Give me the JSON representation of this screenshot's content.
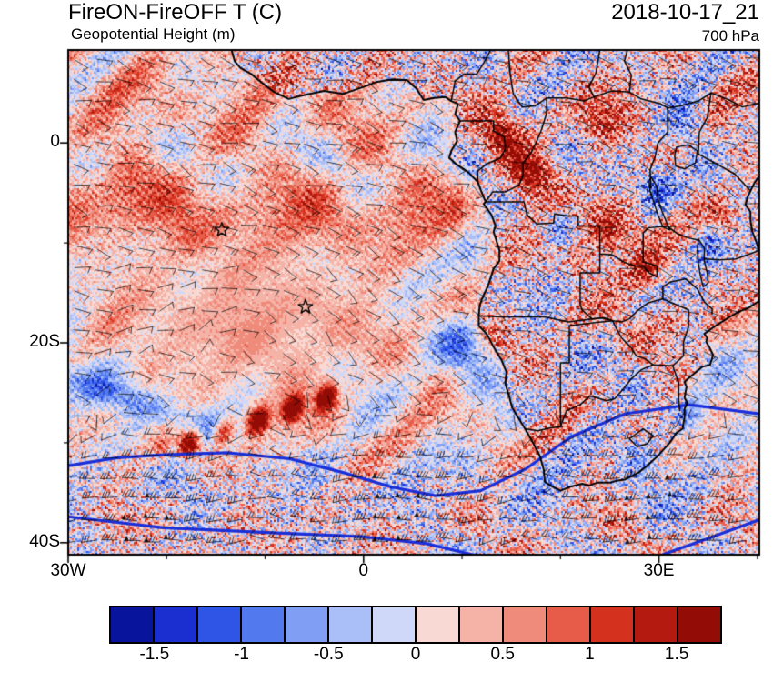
{
  "header": {
    "title": "FireON-FireOFF T (C)",
    "subtitle": "Geopotential Height (m)",
    "datetime": "2018-10-17_21",
    "level": "700 hPa"
  },
  "axes": {
    "lat_major": [
      {
        "label": "0",
        "value": 0
      },
      {
        "label": "20S",
        "value": -20
      },
      {
        "label": "40S",
        "value": -40
      }
    ],
    "lat_minor": [
      -10,
      -30
    ],
    "lon_major": [
      {
        "label": "30W",
        "value": -30
      },
      {
        "label": "0",
        "value": 0
      },
      {
        "label": "30E",
        "value": 30
      }
    ],
    "lon_minor": [
      -20,
      -10,
      10,
      20,
      40
    ]
  },
  "colorbar": {
    "colors": [
      "#08149c",
      "#1b2fd0",
      "#2f55e7",
      "#5379ef",
      "#7f9ef4",
      "#aabff7",
      "#cfd8f8",
      "#f8d9d3",
      "#f5b3a8",
      "#ef8b7b",
      "#e75c48",
      "#d4321f",
      "#b51a10",
      "#930c06"
    ],
    "tick_labels": [
      "-1.5",
      "-1",
      "-0.5",
      "0",
      "0.5",
      "1",
      "1.5"
    ]
  },
  "chart_data": {
    "type": "heatmap",
    "title": "FireON-FireOFF T (C)",
    "overlay_field": "Geopotential Height (m)",
    "valid_time": "2018-10-17_21",
    "level": "700 hPa",
    "units": "C",
    "lon_range": [
      -30,
      40.2
    ],
    "lat_range": [
      -41.2,
      9.3
    ],
    "color_levels": [
      -1.75,
      -1.5,
      -1.25,
      -1.0,
      -0.75,
      -0.5,
      -0.25,
      0,
      0.25,
      0.5,
      0.75,
      1.0,
      1.25,
      1.5,
      1.75
    ],
    "colorbar_tick_labels": [
      "-1.5",
      "-1",
      "-0.5",
      "0",
      "0.5",
      "1",
      "1.5"
    ],
    "markers": [
      {
        "lon": -14.4,
        "lat": -8.7
      },
      {
        "lon": -5.9,
        "lat": -16.4
      }
    ],
    "height_contour_color": "#1a2fd8",
    "height_contours": [
      [
        [
          -30,
          -32.3
        ],
        [
          -25,
          -31.5
        ],
        [
          -20.3,
          -31.2
        ],
        [
          -13.9,
          -31.0
        ],
        [
          -7.5,
          -31.6
        ],
        [
          -2,
          -33.0
        ],
        [
          2.7,
          -34.4
        ],
        [
          7.3,
          -35.3
        ],
        [
          11.9,
          -34.8
        ],
        [
          16.5,
          -32.6
        ],
        [
          21.1,
          -29.4
        ],
        [
          26.6,
          -27.1
        ],
        [
          33.1,
          -26.2
        ],
        [
          40.2,
          -27.1
        ]
      ],
      [
        [
          -30,
          -37.4
        ],
        [
          -20.3,
          -38.5
        ],
        [
          -9.3,
          -39.0
        ],
        [
          -0.1,
          -39.4
        ],
        [
          6.4,
          -40.1
        ],
        [
          11.9,
          -41.4
        ]
      ],
      [
        [
          29.8,
          -41.4
        ],
        [
          34.9,
          -39.6
        ],
        [
          40.2,
          -37.7
        ]
      ]
    ]
  },
  "geo": {
    "coastline": [
      [
        -13.4,
        9.3
      ],
      [
        -13.1,
        8.2
      ],
      [
        -12.5,
        7.5
      ],
      [
        -11.4,
        6.9
      ],
      [
        -10.7,
        6.3
      ],
      [
        -9.1,
        5.1
      ],
      [
        -7.6,
        4.4
      ],
      [
        -6.0,
        4.8
      ],
      [
        -4.0,
        5.2
      ],
      [
        -2.1,
        4.9
      ],
      [
        0.0,
        5.6
      ],
      [
        1.3,
        6.1
      ],
      [
        2.5,
        6.3
      ],
      [
        4.4,
        6.3
      ],
      [
        5.4,
        5.4
      ],
      [
        6.1,
        4.3
      ],
      [
        7.2,
        4.5
      ],
      [
        8.3,
        4.6
      ],
      [
        8.9,
        4.2
      ],
      [
        9.6,
        3.9
      ],
      [
        9.3,
        2.9
      ],
      [
        9.8,
        2.2
      ],
      [
        9.3,
        1.1
      ],
      [
        9.5,
        0.2
      ],
      [
        8.9,
        -0.8
      ],
      [
        8.7,
        -1.5
      ],
      [
        9.4,
        -2.1
      ],
      [
        10.6,
        -2.9
      ],
      [
        11.6,
        -3.9
      ],
      [
        11.9,
        -4.7
      ],
      [
        12.4,
        -5.9
      ],
      [
        12.2,
        -6.1
      ],
      [
        13.0,
        -7.2
      ],
      [
        13.4,
        -8.3
      ],
      [
        13.2,
        -8.9
      ],
      [
        13.8,
        -10.7
      ],
      [
        13.8,
        -11.8
      ],
      [
        13.2,
        -12.6
      ],
      [
        12.9,
        -13.5
      ],
      [
        12.6,
        -14.4
      ],
      [
        12.2,
        -15.2
      ],
      [
        11.8,
        -16.2
      ],
      [
        11.7,
        -17.3
      ],
      [
        11.7,
        -18.3
      ],
      [
        12.5,
        -19.1
      ],
      [
        13.2,
        -20.4
      ],
      [
        14.0,
        -21.7
      ],
      [
        14.5,
        -22.9
      ],
      [
        14.4,
        -24.1
      ],
      [
        14.8,
        -25.4
      ],
      [
        15.1,
        -26.5
      ],
      [
        16.4,
        -28.6
      ],
      [
        17.1,
        -29.8
      ],
      [
        17.9,
        -31.3
      ],
      [
        18.3,
        -32.7
      ],
      [
        18.4,
        -33.9
      ],
      [
        19.0,
        -34.3
      ],
      [
        20.0,
        -34.8
      ],
      [
        21.0,
        -34.4
      ],
      [
        22.2,
        -34.1
      ],
      [
        22.9,
        -34.3
      ],
      [
        23.7,
        -34.0
      ],
      [
        25.0,
        -34.0
      ],
      [
        25.7,
        -33.8
      ],
      [
        26.5,
        -33.7
      ],
      [
        27.9,
        -33.0
      ],
      [
        28.8,
        -32.3
      ],
      [
        29.9,
        -31.3
      ],
      [
        31.1,
        -30.0
      ],
      [
        31.8,
        -29.0
      ],
      [
        32.4,
        -28.6
      ],
      [
        32.6,
        -27.4
      ],
      [
        32.6,
        -26.6
      ],
      [
        32.9,
        -26.0
      ],
      [
        32.6,
        -25.5
      ],
      [
        32.8,
        -24.4
      ],
      [
        32.6,
        -23.9
      ],
      [
        33.3,
        -23.3
      ],
      [
        34.4,
        -22.4
      ],
      [
        35.2,
        -22.2
      ],
      [
        35.5,
        -21.2
      ],
      [
        35.1,
        -20.4
      ],
      [
        34.8,
        -19.9
      ],
      [
        34.9,
        -19.5
      ],
      [
        34.6,
        -19.1
      ],
      [
        35.6,
        -18.4
      ],
      [
        36.4,
        -17.9
      ],
      [
        37.2,
        -17.4
      ],
      [
        38.1,
        -16.9
      ],
      [
        39.1,
        -16.5
      ],
      [
        40.2,
        -15.8
      ]
    ],
    "coast_ne": [
      [
        40.2,
        -11.1
      ],
      [
        40.0,
        -10.2
      ],
      [
        39.5,
        -8.9
      ],
      [
        39.3,
        -7.8
      ],
      [
        39.3,
        -6.9
      ],
      [
        38.8,
        -6.2
      ],
      [
        39.0,
        -5.4
      ],
      [
        39.3,
        -4.8
      ],
      [
        39.7,
        -4.0
      ],
      [
        40.2,
        -3.3
      ]
    ],
    "borders": [
      [
        [
          8.9,
          4.2
        ],
        [
          9.3,
          6.2
        ],
        [
          10.2,
          6.9
        ],
        [
          11.5,
          6.9
        ],
        [
          12.2,
          8.0
        ],
        [
          12.9,
          9.3
        ]
      ],
      [
        [
          9.8,
          2.2
        ],
        [
          13.2,
          2.2
        ],
        [
          13.2,
          1.2
        ],
        [
          14.3,
          0.6
        ],
        [
          14.4,
          -0.6
        ],
        [
          13.9,
          -1.5
        ],
        [
          12.5,
          -2.1
        ],
        [
          11.6,
          -2.8
        ],
        [
          11.6,
          -3.9
        ]
      ],
      [
        [
          12.4,
          -5.9
        ],
        [
          13.1,
          -4.9
        ],
        [
          14.4,
          -4.9
        ],
        [
          15.8,
          -4.2
        ],
        [
          16.2,
          -3.2
        ],
        [
          16.2,
          -2.0
        ],
        [
          17.0,
          -1.0
        ],
        [
          17.6,
          0.2
        ],
        [
          18.1,
          1.4
        ],
        [
          18.6,
          3.0
        ],
        [
          18.6,
          4.5
        ]
      ],
      [
        [
          14.7,
          9.3
        ],
        [
          14.9,
          6.8
        ],
        [
          15.2,
          4.9
        ],
        [
          16.1,
          3.6
        ],
        [
          17.4,
          3.7
        ],
        [
          18.6,
          4.5
        ],
        [
          20.6,
          4.5
        ],
        [
          22.4,
          4.2
        ],
        [
          23.4,
          4.6
        ],
        [
          25.2,
          5.2
        ],
        [
          27.0,
          5.1
        ]
      ],
      [
        [
          24.0,
          9.3
        ],
        [
          23.6,
          7.0
        ],
        [
          22.9,
          5.6
        ],
        [
          23.4,
          4.6
        ]
      ],
      [
        [
          27.0,
          5.1
        ],
        [
          27.2,
          6.8
        ],
        [
          26.5,
          8.2
        ],
        [
          26.8,
          9.3
        ]
      ],
      [
        [
          27.0,
          5.1
        ],
        [
          28.2,
          4.4
        ],
        [
          30.2,
          3.9
        ],
        [
          30.9,
          3.5
        ],
        [
          32.2,
          3.7
        ],
        [
          34.0,
          4.2
        ],
        [
          35.3,
          5.0
        ],
        [
          36.9,
          4.4
        ],
        [
          38.5,
          3.6
        ],
        [
          39.8,
          3.9
        ],
        [
          40.2,
          4.0
        ]
      ],
      [
        [
          30.9,
          3.5
        ],
        [
          30.9,
          1.1
        ],
        [
          29.9,
          0.0
        ],
        [
          29.6,
          -1.4
        ],
        [
          29.1,
          -2.7
        ],
        [
          29.2,
          -4.5
        ]
      ],
      [
        [
          35.3,
          5.0
        ],
        [
          34.9,
          2.5
        ],
        [
          34.1,
          1.1
        ],
        [
          34.0,
          -1.1
        ]
      ],
      [
        [
          34.0,
          -1.1
        ],
        [
          37.7,
          -3.1
        ],
        [
          39.2,
          -4.7
        ]
      ],
      [
        [
          30.8,
          -8.3
        ],
        [
          31.9,
          -9.1
        ],
        [
          33.0,
          -9.5
        ],
        [
          33.9,
          -9.7
        ]
      ],
      [
        [
          34.6,
          -11.6
        ],
        [
          36.2,
          -11.7
        ],
        [
          37.8,
          -11.6
        ],
        [
          39.8,
          -10.9
        ],
        [
          40.4,
          -10.5
        ]
      ],
      [
        [
          12.4,
          -5.9
        ],
        [
          16.3,
          -5.9
        ],
        [
          16.6,
          -7.2
        ],
        [
          17.6,
          -8.1
        ],
        [
          19.3,
          -8.0
        ],
        [
          19.4,
          -7.1
        ],
        [
          20.7,
          -7.3
        ],
        [
          21.8,
          -7.3
        ],
        [
          21.8,
          -8.3
        ],
        [
          24.0,
          -8.3
        ]
      ],
      [
        [
          24.0,
          -8.3
        ],
        [
          24.0,
          -11.1
        ],
        [
          25.3,
          -11.2
        ],
        [
          26.6,
          -12.0
        ],
        [
          27.6,
          -12.3
        ],
        [
          28.4,
          -12.3
        ],
        [
          29.0,
          -13.0
        ],
        [
          29.8,
          -13.4
        ],
        [
          29.8,
          -12.3
        ],
        [
          28.4,
          -11.9
        ],
        [
          28.4,
          -9.0
        ],
        [
          28.9,
          -8.5
        ],
        [
          30.8,
          -8.3
        ]
      ],
      [
        [
          24.0,
          -11.1
        ],
        [
          24.0,
          -13.0
        ],
        [
          22.0,
          -13.0
        ],
        [
          22.0,
          -16.2
        ],
        [
          22.2,
          -16.7
        ],
        [
          23.2,
          -17.6
        ]
      ],
      [
        [
          11.7,
          -17.3
        ],
        [
          13.9,
          -17.4
        ],
        [
          18.4,
          -17.4
        ],
        [
          20.8,
          -17.9
        ],
        [
          23.2,
          -17.6
        ]
      ],
      [
        [
          23.2,
          -17.6
        ],
        [
          24.3,
          -17.5
        ],
        [
          25.3,
          -17.8
        ]
      ],
      [
        [
          20.9,
          -18.3
        ],
        [
          23.3,
          -18.0
        ],
        [
          25.3,
          -17.8
        ]
      ],
      [
        [
          20.9,
          -18.3
        ],
        [
          20.9,
          -22.0
        ],
        [
          20.0,
          -22.0
        ],
        [
          20.0,
          -28.4
        ]
      ],
      [
        [
          16.4,
          -28.6
        ],
        [
          17.7,
          -28.8
        ],
        [
          19.0,
          -28.5
        ],
        [
          20.0,
          -28.4
        ]
      ],
      [
        [
          20.0,
          -28.4
        ],
        [
          20.6,
          -26.8
        ],
        [
          22.0,
          -26.2
        ],
        [
          23.0,
          -25.3
        ],
        [
          24.7,
          -25.8
        ],
        [
          25.5,
          -25.6
        ],
        [
          26.4,
          -24.6
        ],
        [
          27.2,
          -23.6
        ],
        [
          28.2,
          -22.7
        ],
        [
          29.4,
          -22.2
        ]
      ],
      [
        [
          25.3,
          -17.8
        ],
        [
          25.7,
          -18.6
        ],
        [
          26.2,
          -19.5
        ],
        [
          27.2,
          -20.5
        ],
        [
          27.7,
          -21.3
        ],
        [
          28.6,
          -21.6
        ],
        [
          29.4,
          -22.2
        ]
      ],
      [
        [
          23.2,
          -17.6
        ],
        [
          24.4,
          -17.5
        ],
        [
          25.3,
          -17.8
        ],
        [
          26.2,
          -17.9
        ],
        [
          27.0,
          -17.6
        ],
        [
          27.8,
          -16.8
        ],
        [
          28.9,
          -16.0
        ],
        [
          30.4,
          -15.6
        ]
      ],
      [
        [
          30.4,
          -15.6
        ],
        [
          30.4,
          -14.4
        ],
        [
          31.2,
          -13.9
        ],
        [
          32.7,
          -13.6
        ]
      ],
      [
        [
          32.7,
          -13.6
        ],
        [
          33.9,
          -14.6
        ],
        [
          34.6,
          -15.9
        ],
        [
          35.4,
          -16.6
        ],
        [
          35.4,
          -17.1
        ]
      ],
      [
        [
          30.4,
          -15.6
        ],
        [
          31.3,
          -16.0
        ],
        [
          32.3,
          -16.4
        ],
        [
          33.0,
          -16.7
        ],
        [
          33.0,
          -18.4
        ],
        [
          32.5,
          -19.9
        ],
        [
          32.5,
          -21.3
        ],
        [
          31.4,
          -22.3
        ]
      ],
      [
        [
          29.4,
          -22.2
        ],
        [
          31.4,
          -22.3
        ],
        [
          32.0,
          -24.0
        ],
        [
          32.0,
          -25.6
        ],
        [
          32.1,
          -26.8
        ]
      ],
      [
        [
          27.0,
          -29.6
        ],
        [
          28.4,
          -28.6
        ],
        [
          29.4,
          -29.3
        ],
        [
          28.8,
          -30.1
        ],
        [
          27.8,
          -30.4
        ],
        [
          27.0,
          -29.6
        ]
      ]
    ],
    "lakes": [
      [
        [
          31.8,
          -0.4
        ],
        [
          33.0,
          -0.2
        ],
        [
          33.9,
          -0.8
        ],
        [
          33.7,
          -2.0
        ],
        [
          32.6,
          -2.6
        ],
        [
          31.7,
          -2.3
        ],
        [
          31.6,
          -1.2
        ],
        [
          31.8,
          -0.4
        ]
      ],
      [
        [
          29.2,
          -3.4
        ],
        [
          29.8,
          -4.4
        ],
        [
          29.9,
          -5.6
        ],
        [
          30.3,
          -6.8
        ],
        [
          30.8,
          -8.0
        ],
        [
          31.1,
          -8.7
        ],
        [
          30.4,
          -8.4
        ],
        [
          29.9,
          -7.2
        ],
        [
          29.5,
          -6.0
        ],
        [
          29.1,
          -4.8
        ],
        [
          29.0,
          -3.8
        ],
        [
          29.2,
          -3.4
        ]
      ],
      [
        [
          34.0,
          -9.6
        ],
        [
          34.6,
          -10.5
        ],
        [
          34.6,
          -11.8
        ],
        [
          34.9,
          -13.0
        ],
        [
          35.0,
          -14.0
        ],
        [
          34.5,
          -14.4
        ],
        [
          34.2,
          -13.2
        ],
        [
          34.0,
          -12.0
        ],
        [
          33.9,
          -10.8
        ],
        [
          34.0,
          -9.6
        ]
      ]
    ]
  }
}
